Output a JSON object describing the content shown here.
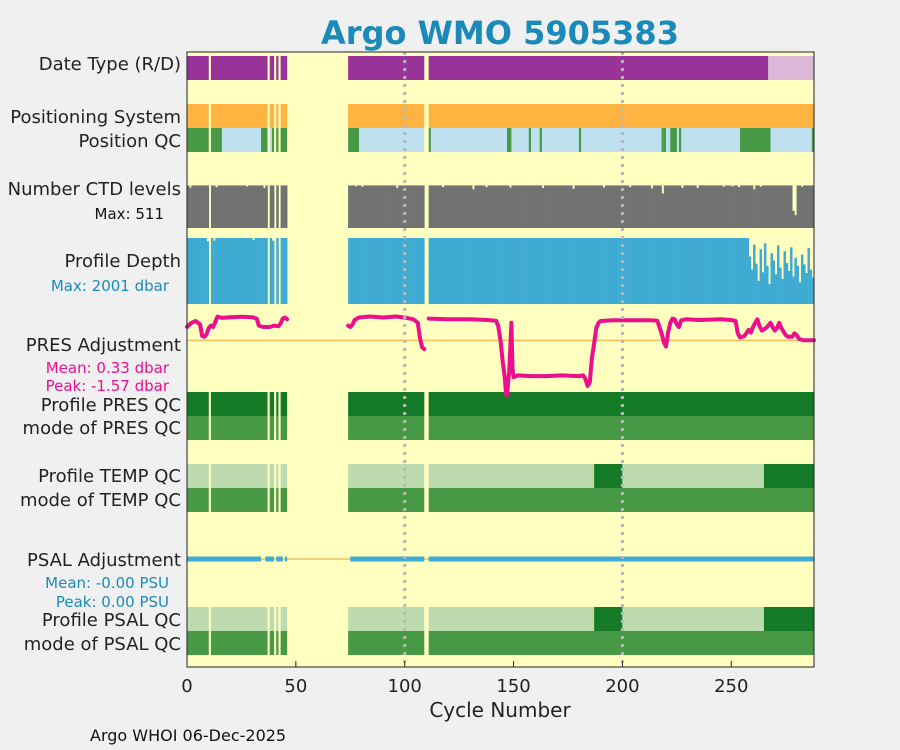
{
  "chart_data": {
    "type": "timeline",
    "title": "Argo WMO 5905383",
    "xlabel": "Cycle Number",
    "xlim": [
      0,
      288
    ],
    "xticks": [
      0,
      50,
      100,
      150,
      200,
      250
    ],
    "xtick_labels": [
      "0",
      "50",
      "100",
      "150",
      "200",
      "250"
    ],
    "grid_x": [
      100,
      200
    ],
    "footer": "Argo WHOI 06-Dec-2025",
    "colors": {
      "background": "#ffffc0",
      "figure": "#f0f0f0",
      "title": "#1a8ab8",
      "purple": "#993399",
      "light_purple": "#dbb8d8",
      "orange": "#ffb340",
      "qc_good": "#479945",
      "qc_light": "#bee0ef",
      "qc_dark": "#147a28",
      "qc_pale": "#bedbb0",
      "gray": "#727272",
      "blue": "#40abd2",
      "magenta": "#ec0e8d",
      "zero_line": "#f0c060"
    },
    "rows": [
      {
        "label": "Date Type (R/D)"
      },
      {
        "label": "Positioning System"
      },
      {
        "label": "Position QC"
      },
      {
        "label": "Number CTD levels",
        "sublabel": "Max: 511"
      },
      {
        "label": "Profile Depth",
        "sublabel": "Max: 2001 dbar"
      },
      {
        "label": "PRES Adjustment",
        "sublabel": "Mean: 0.33 dbar",
        "sublabel2": "Peak: -1.57 dbar"
      },
      {
        "label": "Profile PRES QC"
      },
      {
        "label": "mode of PRES QC"
      },
      {
        "label": "Profile TEMP QC"
      },
      {
        "label": "mode of TEMP QC"
      },
      {
        "label": "PSAL Adjustment",
        "sublabel": "Mean: -0.00 PSU",
        "sublabel2": "Peak: 0.00 PSU"
      },
      {
        "label": "Profile PSAL QC"
      },
      {
        "label": "mode of PSAL QC"
      }
    ],
    "gaps": [
      [
        10,
        11
      ],
      [
        37,
        38
      ],
      [
        40,
        41
      ],
      [
        42,
        43
      ],
      [
        46,
        74
      ],
      [
        109,
        111
      ]
    ],
    "segments": {
      "date_type": [
        {
          "from": 0,
          "to": 267,
          "color": "purple"
        },
        {
          "from": 267,
          "to": 288,
          "color": "light_purple"
        }
      ],
      "positioning": [
        {
          "from": 0,
          "to": 288,
          "color": "orange"
        }
      ],
      "position_qc": {
        "base": "qc_light",
        "good": [
          [
            0,
            16
          ],
          [
            34,
            37
          ],
          [
            39,
            46
          ],
          [
            74,
            79
          ],
          [
            111,
            112
          ],
          [
            147,
            149
          ],
          [
            157,
            158
          ],
          [
            162,
            163
          ],
          [
            180,
            181
          ],
          [
            218,
            219
          ],
          [
            219,
            220
          ],
          [
            222,
            225
          ],
          [
            226,
            227
          ],
          [
            254,
            257
          ],
          [
            257,
            268
          ],
          [
            287,
            288
          ]
        ]
      },
      "pres_profile_qc": [
        {
          "from": 0,
          "to": 288,
          "color": "qc_dark"
        }
      ],
      "pres_mode_qc": [
        {
          "from": 0,
          "to": 288,
          "color": "qc_good"
        }
      ],
      "temp_profile_qc": [
        {
          "from": 0,
          "to": 187,
          "color": "qc_pale"
        },
        {
          "from": 187,
          "to": 200,
          "color": "qc_dark"
        },
        {
          "from": 200,
          "to": 265,
          "color": "qc_pale"
        },
        {
          "from": 265,
          "to": 288,
          "color": "qc_dark"
        }
      ],
      "temp_mode_qc": [
        {
          "from": 0,
          "to": 288,
          "color": "qc_good"
        }
      ],
      "psal_profile_qc": [
        {
          "from": 0,
          "to": 187,
          "color": "qc_pale"
        },
        {
          "from": 187,
          "to": 200,
          "color": "qc_dark"
        },
        {
          "from": 200,
          "to": 265,
          "color": "qc_pale"
        },
        {
          "from": 265,
          "to": 288,
          "color": "qc_dark"
        }
      ],
      "psal_mode_qc": [
        {
          "from": 0,
          "to": 288,
          "color": "qc_good"
        }
      ]
    },
    "ctd_levels": {
      "max": 511,
      "base_fraction": 0.99,
      "dips": [
        [
          1,
          0.94
        ],
        [
          13,
          0.95
        ],
        [
          27,
          0.97
        ],
        [
          35,
          0.93
        ],
        [
          77,
          0.97
        ],
        [
          80,
          0.96
        ],
        [
          96,
          0.93
        ],
        [
          117,
          0.95
        ],
        [
          131,
          0.9
        ],
        [
          137,
          0.95
        ],
        [
          148,
          0.94
        ],
        [
          163,
          0.93
        ],
        [
          177,
          0.91
        ],
        [
          191,
          0.94
        ],
        [
          203,
          0.95
        ],
        [
          213,
          0.92
        ],
        [
          218,
          0.8
        ],
        [
          227,
          0.93
        ],
        [
          234,
          0.93
        ],
        [
          246,
          0.96
        ],
        [
          250,
          0.97
        ],
        [
          253,
          0.95
        ],
        [
          260,
          0.9
        ],
        [
          263,
          0.96
        ],
        [
          278,
          0.4
        ],
        [
          279,
          0.3
        ],
        [
          282,
          0.96
        ]
      ]
    },
    "profile_depth": {
      "max_dbar": 2001,
      "low_start": 258,
      "early_dips": [
        [
          9,
          0.95
        ],
        [
          12,
          0.96
        ],
        [
          30,
          0.97
        ],
        [
          39,
          0.96
        ]
      ],
      "tail": [
        0.72,
        0.52,
        0.9,
        0.61,
        0.35,
        0.83,
        0.48,
        0.92,
        0.58,
        0.3,
        0.77,
        0.66,
        0.45,
        0.89,
        0.55,
        0.38,
        0.8,
        0.62,
        0.5,
        0.86,
        0.42,
        0.7,
        0.58,
        0.33,
        0.75,
        0.6,
        0.47,
        0.85,
        0.52,
        0.4
      ]
    },
    "pres_adjustment": {
      "mean_dbar": 0.33,
      "peak_dbar": -1.57,
      "ylim": [
        -1.7,
        0.75
      ],
      "points": [
        [
          0,
          0.38
        ],
        [
          2,
          0.5
        ],
        [
          4,
          0.55
        ],
        [
          6,
          0.45
        ],
        [
          7,
          0.12
        ],
        [
          8,
          0.1
        ],
        [
          9,
          0.18
        ],
        [
          10,
          0.35
        ],
        [
          11,
          0.42
        ],
        [
          12,
          0.38
        ],
        [
          13,
          0.52
        ],
        [
          14,
          0.68
        ],
        [
          16,
          0.64
        ],
        [
          20,
          0.66
        ],
        [
          25,
          0.67
        ],
        [
          30,
          0.66
        ],
        [
          32,
          0.62
        ],
        [
          33,
          0.42
        ],
        [
          35,
          0.38
        ],
        [
          38,
          0.38
        ],
        [
          40,
          0.42
        ],
        [
          42,
          0.4
        ],
        [
          43,
          0.48
        ],
        [
          44,
          0.62
        ],
        [
          45,
          0.65
        ],
        [
          46,
          0.6
        ],
        [
          null,
          null
        ],
        [
          74,
          0.42
        ],
        [
          75,
          0.38
        ],
        [
          76,
          0.45
        ],
        [
          77,
          0.58
        ],
        [
          79,
          0.65
        ],
        [
          84,
          0.68
        ],
        [
          90,
          0.65
        ],
        [
          96,
          0.68
        ],
        [
          101,
          0.64
        ],
        [
          104,
          0.6
        ],
        [
          105,
          0.55
        ],
        [
          106,
          0.5
        ],
        [
          107,
          0.08
        ],
        [
          108,
          -0.2
        ],
        [
          109,
          -0.25
        ],
        [
          null,
          null
        ],
        [
          111,
          0.62
        ],
        [
          120,
          0.6
        ],
        [
          130,
          0.6
        ],
        [
          138,
          0.58
        ],
        [
          142,
          0.56
        ],
        [
          143,
          0.4
        ],
        [
          144,
          0
        ],
        [
          145,
          -0.6
        ],
        [
          146,
          -1.1
        ],
        [
          146.5,
          -1.5
        ],
        [
          147,
          -1.57
        ],
        [
          147.5,
          -1.2
        ],
        [
          148,
          -0.9
        ],
        [
          148.5,
          -0.2
        ],
        [
          149,
          0.5
        ],
        [
          149.5,
          -0.8
        ],
        [
          150,
          -1.05
        ],
        [
          152,
          -1.0
        ],
        [
          158,
          -1.02
        ],
        [
          165,
          -1.02
        ],
        [
          172,
          -1.0
        ],
        [
          180,
          -1.02
        ],
        [
          182,
          -1.0
        ],
        [
          183,
          -1.1
        ],
        [
          184,
          -1.3
        ],
        [
          185,
          -1.2
        ],
        [
          186,
          -0.5
        ],
        [
          187,
          -0.1
        ],
        [
          188,
          0.35
        ],
        [
          189,
          0.5
        ],
        [
          190,
          0.55
        ],
        [
          196,
          0.57
        ],
        [
          205,
          0.57
        ],
        [
          213,
          0.57
        ],
        [
          216,
          0.56
        ],
        [
          217,
          0.38
        ],
        [
          218,
          0.2
        ],
        [
          219,
          -0.05
        ],
        [
          220,
          -0.18
        ],
        [
          221,
          0.22
        ],
        [
          222,
          0.5
        ],
        [
          223,
          0.62
        ],
        [
          224,
          0.6
        ],
        [
          225,
          0.45
        ],
        [
          226,
          0.38
        ],
        [
          227,
          0.57
        ],
        [
          229,
          0.6
        ],
        [
          235,
          0.58
        ],
        [
          245,
          0.6
        ],
        [
          250,
          0.58
        ],
        [
          252,
          0.55
        ],
        [
          253,
          0.2
        ],
        [
          254,
          0.08
        ],
        [
          256,
          0.12
        ],
        [
          258,
          0.3
        ],
        [
          259,
          0.22
        ],
        [
          260,
          0.38
        ],
        [
          261,
          0.5
        ],
        [
          262,
          0.6
        ],
        [
          263,
          0.4
        ],
        [
          264,
          0.28
        ],
        [
          266,
          0.35
        ],
        [
          268,
          0.5
        ],
        [
          269,
          0.38
        ],
        [
          270,
          0.28
        ],
        [
          271,
          0.35
        ],
        [
          272,
          0.5
        ],
        [
          273,
          0.35
        ],
        [
          274,
          0.25
        ],
        [
          275,
          0.15
        ],
        [
          276,
          0.1
        ],
        [
          278,
          0.1
        ],
        [
          279,
          0.2
        ],
        [
          280,
          0.15
        ],
        [
          281,
          0.05
        ],
        [
          283,
          0.0
        ],
        [
          288,
          0.0
        ]
      ]
    },
    "psal_adjustment": {
      "mean_psu": -0.0,
      "peak_psu": 0.0,
      "gaps": [
        [
          34,
          36
        ],
        [
          40,
          41
        ],
        [
          44,
          45
        ],
        [
          74,
          75
        ],
        [
          109,
          111
        ]
      ],
      "value": 0.0
    }
  }
}
